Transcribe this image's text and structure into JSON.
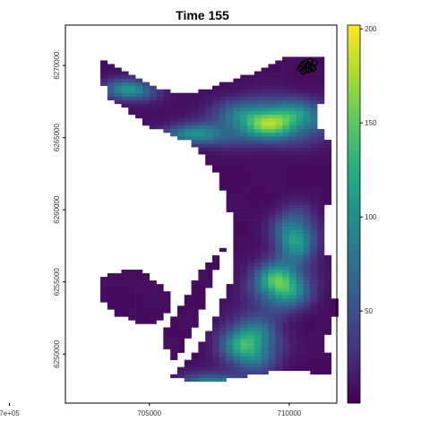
{
  "chart_data": {
    "type": "heatmap",
    "title": "Time 155",
    "xlabel": "",
    "ylabel": "",
    "xlim": [
      702000,
      711700
    ],
    "ylim": [
      6246600,
      6272800
    ],
    "x_ticks": [
      {
        "value": 700000,
        "label": "7e+05"
      },
      {
        "value": 705000,
        "label": "705000"
      },
      {
        "value": 710000,
        "label": "710000"
      }
    ],
    "y_ticks": [
      {
        "value": 6250000,
        "label": "6250000"
      },
      {
        "value": 6255000,
        "label": "6255000"
      },
      {
        "value": 6260000,
        "label": "6260000"
      },
      {
        "value": 6265000,
        "label": "6265000"
      },
      {
        "value": 6270000,
        "label": "6270000"
      }
    ],
    "colorbar": {
      "colormap": "viridis",
      "range": [
        1,
        202
      ],
      "ticks": [
        50,
        100,
        150,
        200
      ]
    },
    "grid": false,
    "legend_position": "right",
    "raster_colors": {
      "background": "#ffffff",
      "na": "#ffffff",
      "panel_border": "#000000"
    },
    "overlay_points": [
      {
        "x": 710400,
        "y": 6269800
      },
      {
        "x": 710500,
        "y": 6270100
      },
      {
        "x": 710600,
        "y": 6269700
      },
      {
        "x": 710700,
        "y": 6270000
      },
      {
        "x": 710800,
        "y": 6269900
      },
      {
        "x": 710500,
        "y": 6269600
      },
      {
        "x": 710900,
        "y": 6270200
      },
      {
        "x": 710600,
        "y": 6270200
      },
      {
        "x": 710700,
        "y": 6269700
      },
      {
        "x": 710850,
        "y": 6269800
      },
      {
        "x": 710450,
        "y": 6269950
      },
      {
        "x": 710750,
        "y": 6270300
      }
    ]
  }
}
